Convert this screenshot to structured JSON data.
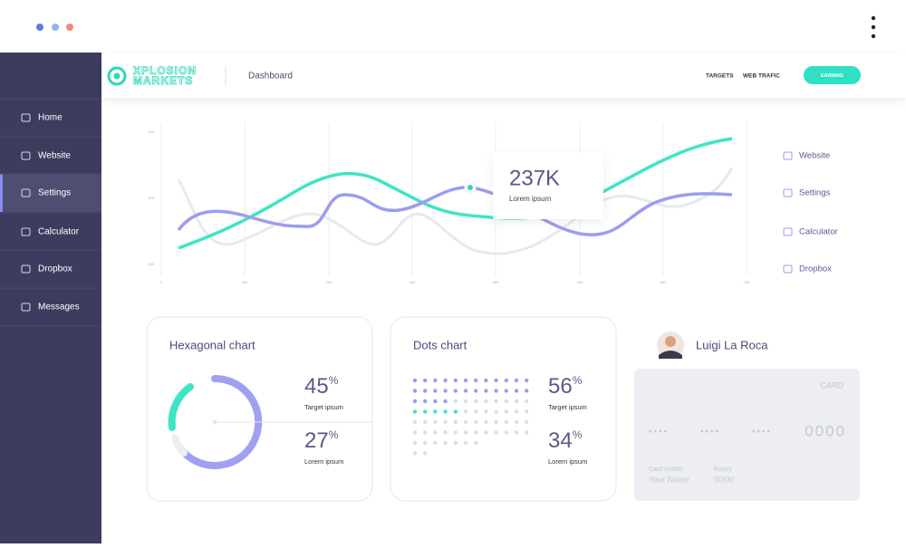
{
  "logo": {
    "line1": "XPLOSION",
    "line2": "MARKETS"
  },
  "header": {
    "title": "Dashboard",
    "links": [
      "TARGETS",
      "WEB TRAFIC"
    ],
    "button": "EARNING"
  },
  "sidebar": [
    "Home",
    "Website",
    "Settings",
    "Calculator",
    "Dropbox",
    "Messages"
  ],
  "line_panel": {
    "yticks": [
      "200",
      "100",
      "000"
    ],
    "xticks": [
      "0",
      "100",
      "200",
      "300",
      "400",
      "500",
      "600",
      "700"
    ],
    "tooltip": {
      "value": "237K",
      "label": "Lorem ipsum"
    },
    "menu": [
      "Website",
      "Settings",
      "Calculator",
      "Dropbox"
    ]
  },
  "hex_card": {
    "title": "Hexagonal chart",
    "stats": [
      {
        "value": 45,
        "unit": "%",
        "label": "Target ipsum"
      },
      {
        "value": 27,
        "unit": "%",
        "label": "Lorem ipsum"
      }
    ]
  },
  "dots_card": {
    "title": "Dots chart",
    "stats": [
      {
        "value": 56,
        "unit": "%",
        "label": "Target ipsum"
      },
      {
        "value": 34,
        "unit": "%",
        "label": "Lorem ipsum"
      }
    ]
  },
  "profile": {
    "name": "Luigi La Roca"
  },
  "bank_card": {
    "label": "CARD",
    "masked": [
      "••••",
      "••••",
      "••••"
    ],
    "last": "0000",
    "holder_label": "Card Holder",
    "holder": "Your Name",
    "expiry_label": "Expiry",
    "expiry": "00/00"
  }
}
